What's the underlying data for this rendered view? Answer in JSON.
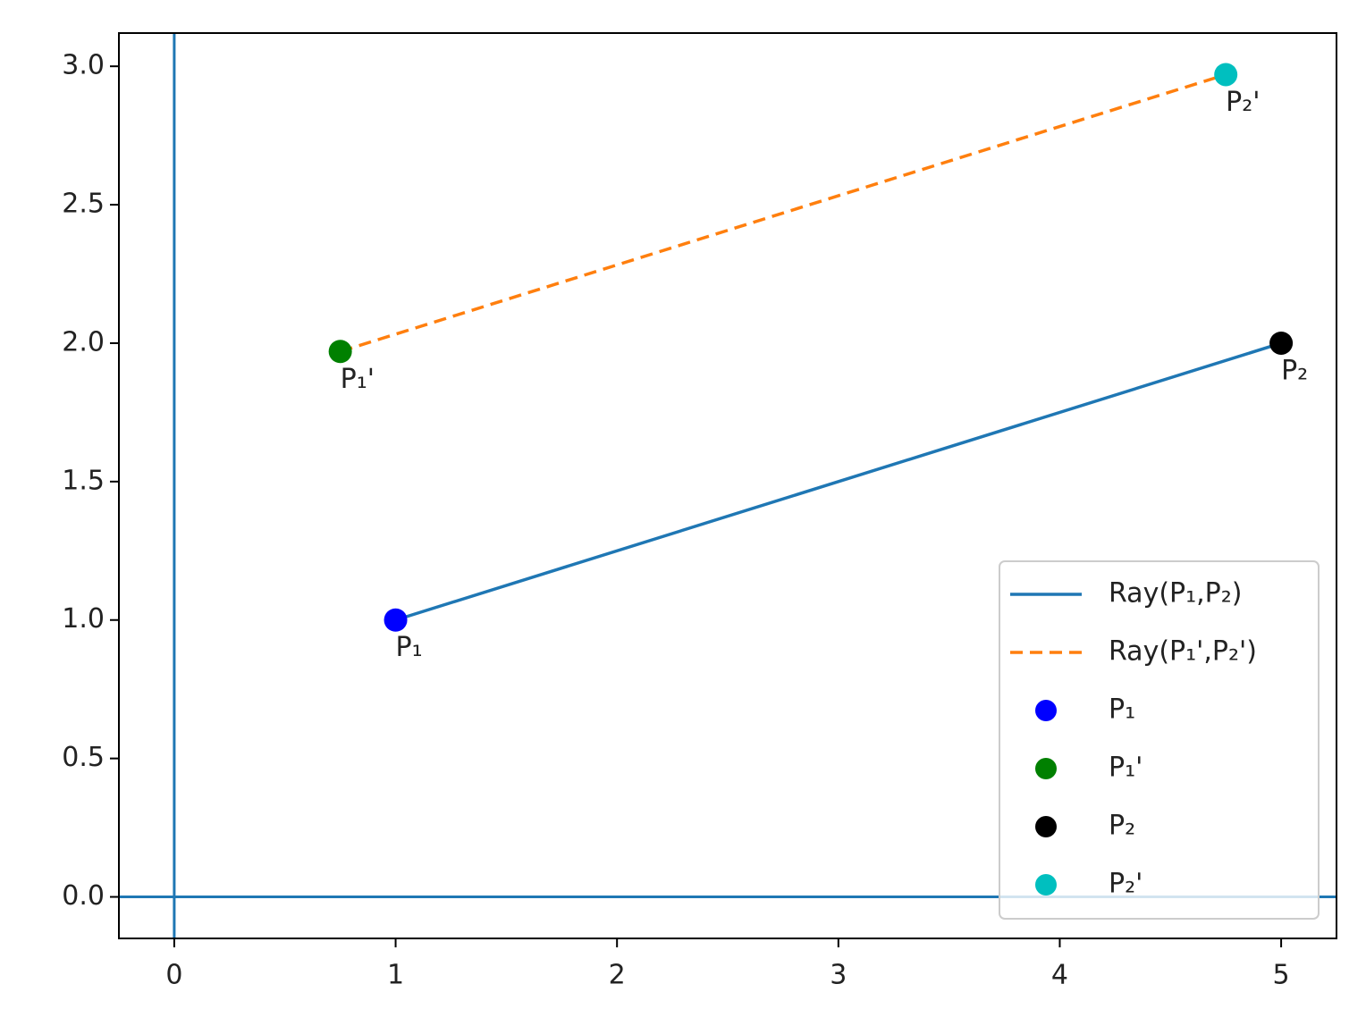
{
  "chart_data": {
    "type": "line",
    "xlim": [
      -0.25,
      5.25
    ],
    "ylim": [
      -0.15,
      3.12
    ],
    "xticks": [
      0,
      1,
      2,
      3,
      4,
      5
    ],
    "yticks": [
      {
        "value": 0,
        "label": "0.0"
      },
      {
        "value": 0.5,
        "label": "0.5"
      },
      {
        "value": 1,
        "label": "1.0"
      },
      {
        "value": 1.5,
        "label": "1.5"
      },
      {
        "value": 2,
        "label": "2.0"
      },
      {
        "value": 2.5,
        "label": "2.5"
      },
      {
        "value": 3,
        "label": "3.0"
      }
    ],
    "reference_lines": {
      "x": 0,
      "y": 0,
      "color": "#1f77b4"
    },
    "legend": "lower right",
    "series": [
      {
        "name": "Ray(P₁,P₂)",
        "color": "#1f77b4",
        "style": "solid",
        "x": [
          1,
          5
        ],
        "values": [
          1,
          2
        ]
      },
      {
        "name": "Ray(P₁',P₂')",
        "color": "#ff7f0e",
        "style": "dashed",
        "x": [
          0.75,
          4.75
        ],
        "values": [
          1.97,
          2.97
        ]
      },
      {
        "name": "P₁",
        "color": "#0000ff",
        "style": "marker",
        "x": [
          1
        ],
        "values": [
          1
        ]
      },
      {
        "name": "P₁'",
        "color": "#008000",
        "style": "marker",
        "x": [
          0.75
        ],
        "values": [
          1.97
        ]
      },
      {
        "name": "P₂",
        "color": "#000000",
        "style": "marker",
        "x": [
          5
        ],
        "values": [
          2
        ]
      },
      {
        "name": "P₂'",
        "color": "#00bfbf",
        "style": "marker",
        "x": [
          4.75
        ],
        "values": [
          2.97
        ]
      }
    ]
  }
}
